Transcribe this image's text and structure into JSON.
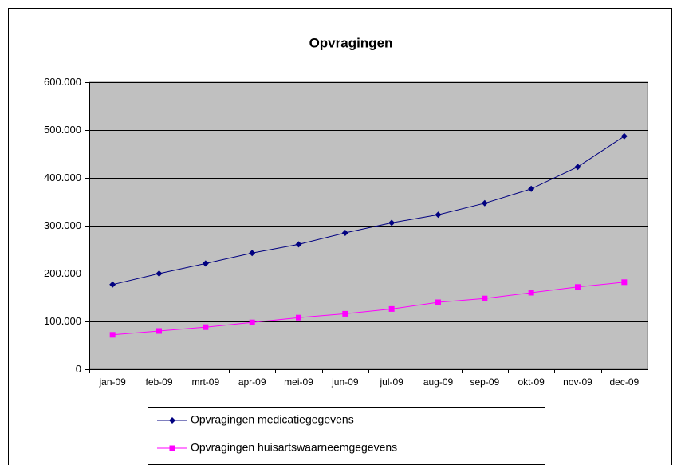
{
  "chart_data": {
    "type": "line",
    "title": "Opvragingen",
    "categories": [
      "jan-09",
      "feb-09",
      "mrt-09",
      "apr-09",
      "mei-09",
      "jun-09",
      "jul-09",
      "aug-09",
      "sep-09",
      "okt-09",
      "nov-09",
      "dec-09"
    ],
    "series": [
      {
        "name": "Opvragingen medicatiegegevens",
        "color": "#000080",
        "marker": "diamond",
        "values": [
          177000,
          200000,
          221000,
          243000,
          261000,
          285000,
          306000,
          323000,
          347000,
          377000,
          423000,
          487000
        ]
      },
      {
        "name": "Opvragingen huisartswaarneemgegevens",
        "color": "#ff00ff",
        "marker": "square",
        "values": [
          72000,
          80000,
          88000,
          98000,
          108000,
          116000,
          126000,
          140000,
          148000,
          160000,
          172000,
          182000
        ]
      }
    ],
    "ylim": [
      0,
      600000
    ],
    "yticks": [
      0,
      {
        "value": 100000,
        "label": "100.000"
      },
      {
        "value": 200000,
        "label": "200.000"
      },
      {
        "value": 300000,
        "label": "300.000"
      },
      {
        "value": 400000,
        "label": "400.000"
      },
      {
        "value": 500000,
        "label": "500.000"
      },
      {
        "value": 600000,
        "label": "600.000"
      }
    ],
    "grid": true,
    "legend": "bottom"
  }
}
